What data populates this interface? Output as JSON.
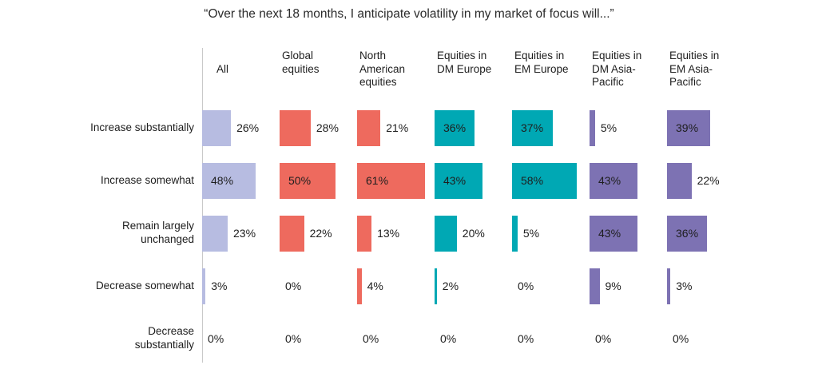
{
  "title": "“Over the next 18 months, I anticipate volatility in my market of focus will...”",
  "chart_data": {
    "type": "bar",
    "orientation": "horizontal",
    "title": "“Over the next 18 months, I anticipate volatility in my market of focus will...”",
    "value_suffix": "%",
    "value_axis_max": 70,
    "legend": "none",
    "grid": "off",
    "label_inside_threshold": 35,
    "categories": [
      {
        "name": "Increase substantially",
        "label": "Increase substantially"
      },
      {
        "name": "Increase somewhat",
        "label": "Increase somewhat"
      },
      {
        "name": "Remain largely unchanged",
        "label": "Remain largely\nunchanged"
      },
      {
        "name": "Decrease somewhat",
        "label": "Decrease somewhat"
      },
      {
        "name": "Decrease substantially",
        "label": "Decrease\nsubstantially"
      }
    ],
    "series": [
      {
        "name": "All",
        "label": "All",
        "color": "#b7bce1",
        "values": [
          26,
          48,
          23,
          3,
          0
        ]
      },
      {
        "name": "Global equities",
        "label": "Global\nequities",
        "color": "#ee6a5e",
        "values": [
          28,
          50,
          22,
          0,
          0
        ]
      },
      {
        "name": "North American equities",
        "label": "North\nAmerican\nequities",
        "color": "#ee6a5e",
        "values": [
          21,
          61,
          13,
          4,
          0
        ]
      },
      {
        "name": "Equities in DM Europe",
        "label": "Equities in\nDM Europe",
        "color": "#00a8b4",
        "values": [
          36,
          43,
          20,
          2,
          0
        ]
      },
      {
        "name": "Equities in EM Europe",
        "label": "Equities in\nEM Europe",
        "color": "#00a8b4",
        "values": [
          37,
          58,
          5,
          0,
          0
        ]
      },
      {
        "name": "Equities in DM Asia-Pacific",
        "label": "Equities in\nDM Asia-\nPacific",
        "color": "#7d72b3",
        "values": [
          5,
          43,
          43,
          9,
          0
        ]
      },
      {
        "name": "Equities in EM Asia-Pacific",
        "label": "Equities in\nEM Asia-\nPacific",
        "color": "#7d72b3",
        "values": [
          39,
          22,
          36,
          3,
          0
        ]
      }
    ],
    "colors": {
      "all": "#b7bce1",
      "global_and_north_american": "#ee6a5e",
      "europe": "#00a8b4",
      "asia_pacific": "#7d72b3"
    }
  }
}
